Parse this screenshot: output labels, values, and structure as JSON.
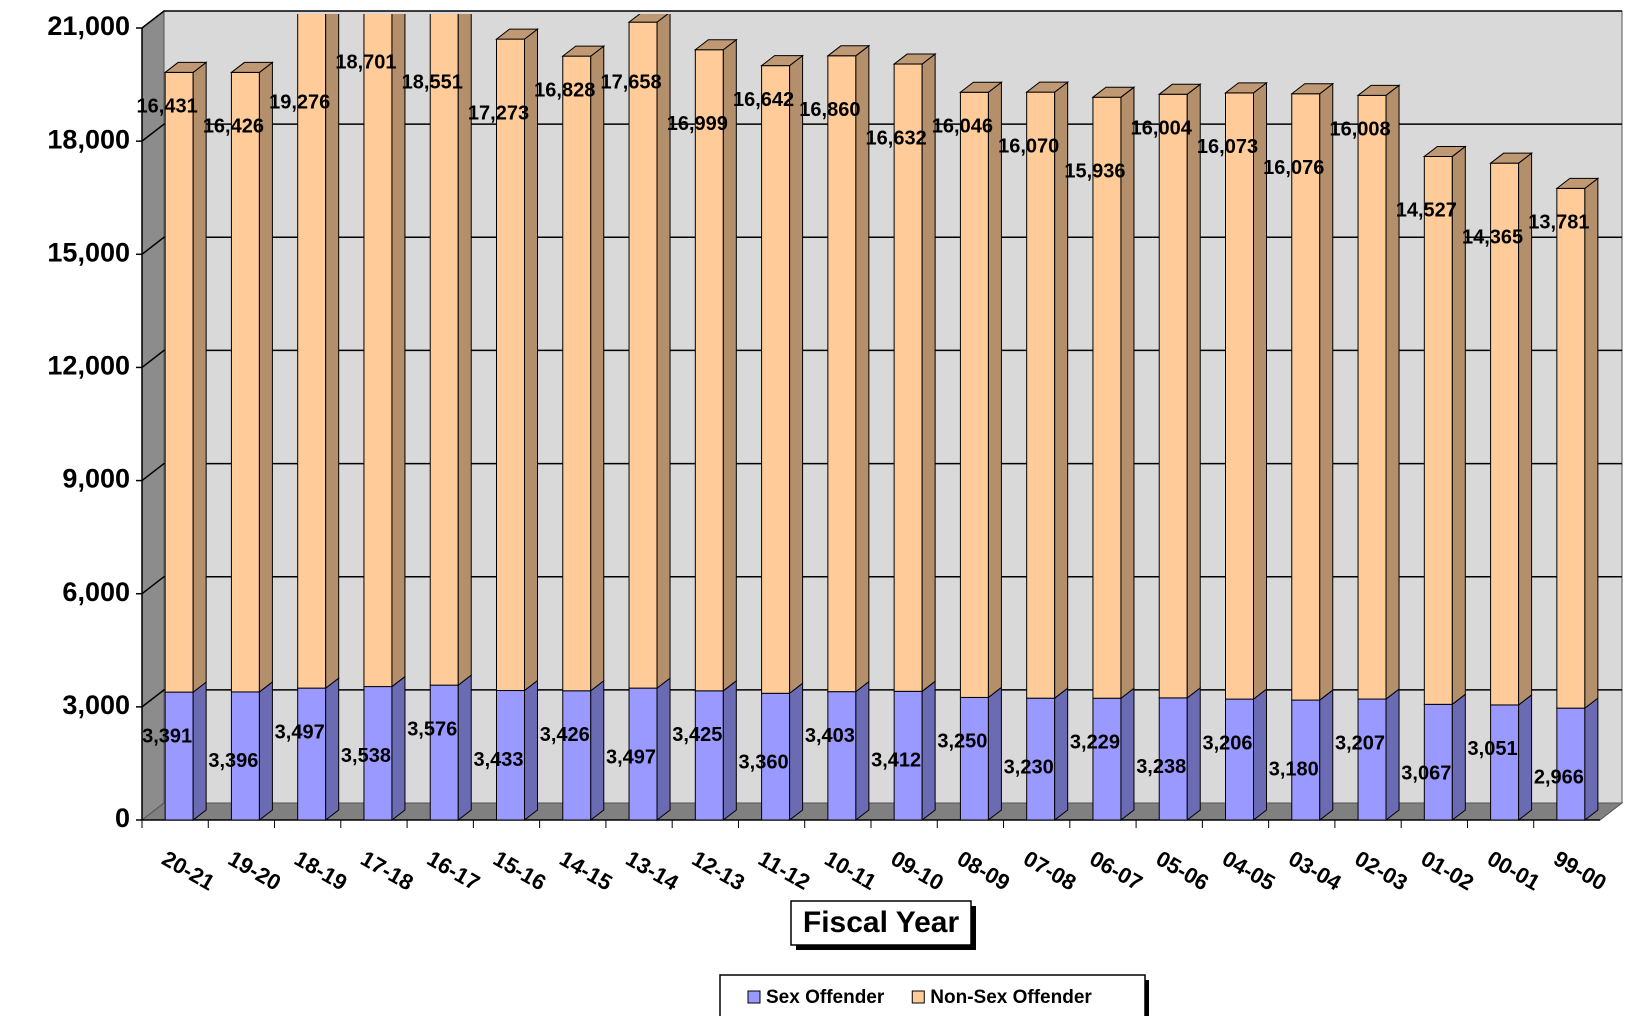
{
  "chart_data": {
    "type": "bar3d-stacked",
    "x_label": "Fiscal Year",
    "categories": [
      "20-21",
      "19-20",
      "18-19",
      "17-18",
      "16-17",
      "15-16",
      "14-15",
      "13-14",
      "12-13",
      "11-12",
      "10-11",
      "09-10",
      "08-09",
      "07-08",
      "06-07",
      "05-06",
      "04-05",
      "03-04",
      "02-03",
      "01-02",
      "00-01",
      "99-00"
    ],
    "series": [
      {
        "name": "Sex Offender",
        "color": "#9999ff",
        "values": [
          3391,
          3396,
          3497,
          3538,
          3576,
          3433,
          3426,
          3497,
          3425,
          3360,
          3403,
          3412,
          3250,
          3230,
          3229,
          3238,
          3206,
          3180,
          3207,
          3067,
          3051,
          2966
        ],
        "value_labels": [
          "3,391",
          "3,396",
          "3,497",
          "3,538",
          "3,576",
          "3,433",
          "3,426",
          "3,497",
          "3,425",
          "3,360",
          "3,403",
          "3,412",
          "3,250",
          "3,230",
          "3,229",
          "3,238",
          "3,206",
          "3,180",
          "3,207",
          "3,067",
          "3,051",
          "2,966"
        ]
      },
      {
        "name": "Non-Sex Offender",
        "color": "#ffcc99",
        "values": [
          16431,
          16426,
          19276,
          18701,
          18551,
          17273,
          16828,
          17658,
          16999,
          16642,
          16860,
          16632,
          16046,
          16070,
          15936,
          16004,
          16073,
          16076,
          16008,
          14527,
          14365,
          13781
        ],
        "value_labels": [
          "16,431",
          "16,426",
          "19,276",
          "18,701",
          "18,551",
          "17,273",
          "16,828",
          "17,658",
          "16,999",
          "16,642",
          "16,860",
          "16,632",
          "16,046",
          "16,070",
          "15,936",
          "16,004",
          "16,073",
          "16,076",
          "16,008",
          "14,527",
          "14,365",
          "13,781"
        ]
      }
    ],
    "ylim": [
      0,
      21000
    ],
    "yticks": [
      0,
      {
        "value": 3000,
        "label": "3,000"
      },
      {
        "value": 6000,
        "label": "6,000"
      },
      {
        "value": 9000,
        "label": "9,000"
      },
      {
        "value": 12000,
        "label": "12,000"
      },
      {
        "value": 15000,
        "label": "15,000"
      },
      {
        "value": 18000,
        "label": "18,000"
      },
      {
        "value": 21000,
        "label": "21,000"
      }
    ],
    "grid": true,
    "legend": "bottom"
  }
}
